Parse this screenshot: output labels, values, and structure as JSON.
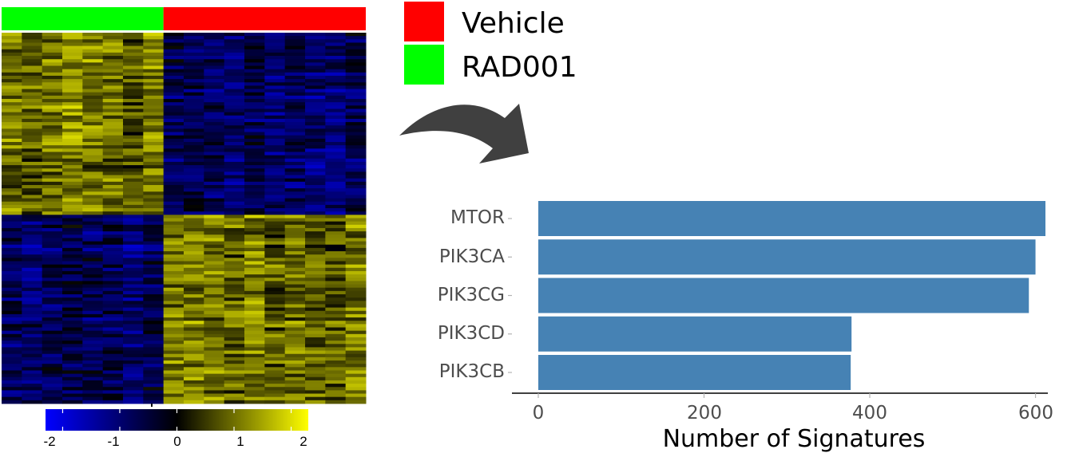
{
  "legend": {
    "items": [
      {
        "label": "Vehicle",
        "color": "#ff0000"
      },
      {
        "label": "RAD001",
        "color": "#00ff00"
      }
    ]
  },
  "heatmap": {
    "group_colors": {
      "RAD001": "#00ff00",
      "Vehicle": "#ff0000"
    },
    "column_groups": [
      "RAD001",
      "RAD001",
      "RAD001",
      "RAD001",
      "RAD001",
      "RAD001",
      "RAD001",
      "RAD001",
      "Vehicle",
      "Vehicle",
      "Vehicle",
      "Vehicle",
      "Vehicle",
      "Vehicle",
      "Vehicle",
      "Vehicle",
      "Vehicle",
      "Vehicle"
    ],
    "colorbar": {
      "ticks": [
        "-2",
        "-1",
        "0",
        "1",
        "2"
      ],
      "range": [
        -2.3,
        2.3
      ],
      "low_color": "#0000ff",
      "mid_color": "#000000",
      "high_color": "#ffff00"
    }
  },
  "arrow_color": "#404040",
  "chart_data": {
    "type": "bar",
    "orientation": "horizontal",
    "categories": [
      "MTOR",
      "PIK3CA",
      "PIK3CG",
      "PIK3CD",
      "PIK3CB"
    ],
    "values": [
      612,
      600,
      592,
      378,
      377
    ],
    "xlabel": "Number of Signatures",
    "ylabel": "",
    "xlim": [
      0,
      612
    ],
    "xticks": [
      "0",
      "200",
      "400",
      "600"
    ],
    "bar_color": "#4682b4"
  }
}
